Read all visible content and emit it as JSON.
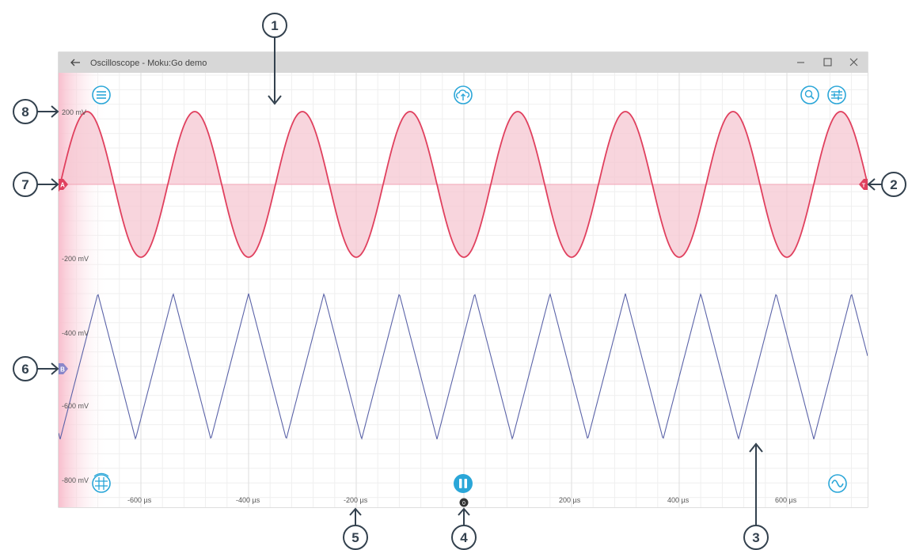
{
  "window": {
    "title": "Oscilloscope - Moku:Go demo",
    "back_icon": "arrow-left-icon",
    "controls": [
      "minimize-icon",
      "maximize-icon",
      "close-icon"
    ]
  },
  "toolbar_icons": {
    "menu": "menu-icon",
    "cloud": "cloud-upload-icon",
    "search": "search-icon",
    "settings": "sliders-icon",
    "grid": "grid-icon",
    "pause": "pause-icon",
    "signal": "sine-wave-icon"
  },
  "y_axis_labels": [
    "200 mV",
    "-200 mV",
    "-400 mV",
    "-600 mV",
    "-800 mV"
  ],
  "x_axis_labels": [
    "-600 µs",
    "-400 µs",
    "-200 µs",
    "200 µs",
    "400 µs",
    "600 µs"
  ],
  "markers": {
    "channel_a": "A",
    "channel_b": "B",
    "trigger": "T",
    "time_zero": "0"
  },
  "callouts": [
    "1",
    "2",
    "3",
    "4",
    "5",
    "6",
    "7",
    "8"
  ],
  "colors": {
    "channel_a": "#e0405e",
    "channel_a_fill": "#f6c7d1",
    "channel_b": "#5b63a8",
    "accent": "#2aa6d8",
    "titlebar": "#d7d7d7",
    "callout": "#33414e",
    "grid": "#e4e4e4"
  },
  "chart_data": {
    "type": "line",
    "title": "",
    "xlabel": "",
    "ylabel": "",
    "x_unit": "µs",
    "xlim": [
      -740,
      780
    ],
    "series": [
      {
        "name": "",
        "shape": "sine",
        "amplitude_mV": 200,
        "offset_mV": 0,
        "period_us": 200,
        "peak_at_us": -300
      },
      {
        "name": "",
        "shape": "triangle",
        "max_mV": -300,
        "min_mV": -700,
        "period_us": 140,
        "peak_at_us": -680
      }
    ]
  }
}
